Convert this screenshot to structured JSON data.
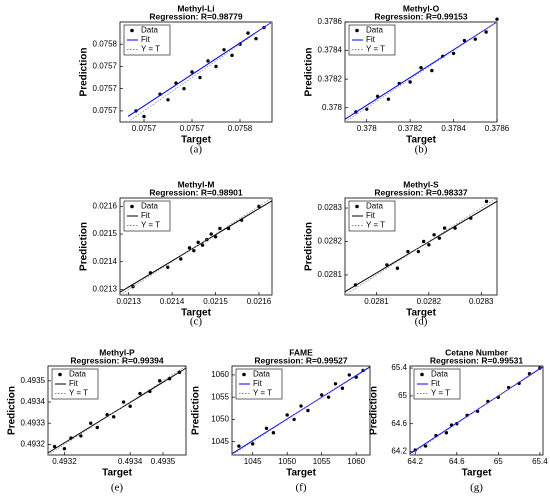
{
  "chart_data": [
    {
      "type": "scatter",
      "title": "Methyl-Li",
      "subtitle": "Regression: R=0.98779",
      "xlabel": "Target",
      "ylabel": "Prediction",
      "caption": "(a)",
      "xlim": [
        0.07563,
        0.07582
      ],
      "ylim": [
        0.07564,
        0.07582
      ],
      "xticks": [
        {
          "value": 0.07566,
          "label": "0.0757"
        },
        {
          "value": 0.07572,
          "label": "0.0757"
        },
        {
          "value": 0.07578,
          "label": "0.0758"
        }
      ],
      "yticks": [
        {
          "value": 0.07566,
          "label": "0.0757"
        },
        {
          "value": 0.0757,
          "label": "0.0757"
        },
        {
          "value": 0.07574,
          "label": "0.0757"
        },
        {
          "value": 0.07578,
          "label": "0.0758"
        }
      ],
      "series": [
        {
          "name": "Data",
          "color": "#000000",
          "style": "marker",
          "x": [
            0.07565,
            0.07566,
            0.07568,
            0.07569,
            0.0757,
            0.07571,
            0.07572,
            0.07573,
            0.07574,
            0.07575,
            0.07576,
            0.07577,
            0.07578,
            0.07579,
            0.0758,
            0.07581
          ],
          "values": [
            0.07566,
            0.07565,
            0.07569,
            0.07568,
            0.07571,
            0.0757,
            0.07573,
            0.07572,
            0.07575,
            0.07574,
            0.07577,
            0.07576,
            0.07578,
            0.0758,
            0.07579,
            0.07581
          ]
        },
        {
          "name": "Fit",
          "color": "#0000ff",
          "style": "solid",
          "x": [
            0.07564,
            0.07582
          ],
          "values": [
            0.07565,
            0.07582
          ]
        },
        {
          "name": "Y = T",
          "color": "#888888",
          "style": "dotted",
          "x": [
            0.07564,
            0.07582
          ],
          "values": [
            0.07564,
            0.07582
          ]
        }
      ]
    },
    {
      "type": "scatter",
      "title": "Methyl-O",
      "subtitle": "Regression: R=0.99153",
      "xlabel": "Target",
      "ylabel": "Prediction",
      "caption": "(b)",
      "xlim": [
        0.3779,
        0.3786
      ],
      "ylim": [
        0.3779,
        0.3786
      ],
      "xticks": [
        0.378,
        0.3782,
        0.3784,
        0.3786
      ],
      "yticks": [
        0.378,
        0.3782,
        0.3784,
        0.3786
      ],
      "series": [
        {
          "name": "Data",
          "color": "#000000",
          "style": "marker",
          "x": [
            0.37795,
            0.378,
            0.37805,
            0.3781,
            0.37815,
            0.3782,
            0.37825,
            0.3783,
            0.37835,
            0.3784,
            0.37845,
            0.3785,
            0.37855,
            0.3786
          ],
          "values": [
            0.37797,
            0.37799,
            0.37808,
            0.37806,
            0.37817,
            0.37818,
            0.37828,
            0.37826,
            0.37836,
            0.37838,
            0.37847,
            0.37848,
            0.37853,
            0.37862
          ]
        },
        {
          "name": "Fit",
          "color": "#0000ff",
          "style": "solid",
          "x": [
            0.3779,
            0.3786
          ],
          "values": [
            0.37792,
            0.3786
          ]
        },
        {
          "name": "Y = T",
          "color": "#888888",
          "style": "dotted",
          "x": [
            0.3779,
            0.3786
          ],
          "values": [
            0.3779,
            0.3786
          ]
        }
      ]
    },
    {
      "type": "scatter",
      "title": "Methyl-M",
      "subtitle": "Regression: R=0.98901",
      "xlabel": "Target",
      "ylabel": "Prediction",
      "caption": "(c)",
      "xlim": [
        0.02128,
        0.02163
      ],
      "ylim": [
        0.02128,
        0.02163
      ],
      "xticks": [
        0.0213,
        0.0214,
        0.0215,
        0.0216
      ],
      "yticks": [
        0.0213,
        0.0214,
        0.0215,
        0.0216
      ],
      "series": [
        {
          "name": "Data",
          "color": "#000000",
          "style": "marker",
          "x": [
            0.02131,
            0.02135,
            0.02139,
            0.02142,
            0.02144,
            0.02145,
            0.02146,
            0.02147,
            0.02148,
            0.02149,
            0.0215,
            0.02151,
            0.02153,
            0.02156,
            0.0216
          ],
          "values": [
            0.02131,
            0.02136,
            0.02138,
            0.02141,
            0.02145,
            0.02144,
            0.02147,
            0.02146,
            0.02148,
            0.0215,
            0.02149,
            0.02152,
            0.02152,
            0.02155,
            0.0216
          ]
        },
        {
          "name": "Fit",
          "color": "#000000",
          "style": "solid",
          "x": [
            0.02128,
            0.02163
          ],
          "values": [
            0.02129,
            0.02162
          ]
        },
        {
          "name": "Y = T",
          "color": "#888888",
          "style": "dotted",
          "x": [
            0.02128,
            0.02163
          ],
          "values": [
            0.02128,
            0.02163
          ]
        }
      ]
    },
    {
      "type": "scatter",
      "title": "Methyl-S",
      "subtitle": "Regression: R=0.98337",
      "xlabel": "Target",
      "ylabel": "Prediction",
      "caption": "(d)",
      "xlim": [
        0.02804,
        0.02833
      ],
      "ylim": [
        0.02804,
        0.02833
      ],
      "xticks": [
        0.0281,
        0.0282,
        0.0283
      ],
      "yticks": [
        0.0281,
        0.0282,
        0.0283
      ],
      "series": [
        {
          "name": "Data",
          "color": "#000000",
          "style": "marker",
          "x": [
            0.02806,
            0.02812,
            0.02814,
            0.02816,
            0.02818,
            0.02819,
            0.0282,
            0.02821,
            0.02822,
            0.02823,
            0.02825,
            0.02828,
            0.02831
          ],
          "values": [
            0.02807,
            0.02813,
            0.02812,
            0.02817,
            0.02817,
            0.0282,
            0.02819,
            0.02822,
            0.02821,
            0.02824,
            0.02824,
            0.02827,
            0.02832
          ]
        },
        {
          "name": "Fit",
          "color": "#000000",
          "style": "solid",
          "x": [
            0.02804,
            0.02833
          ],
          "values": [
            0.02805,
            0.02832
          ]
        },
        {
          "name": "Y = T",
          "color": "#888888",
          "style": "dotted",
          "x": [
            0.02804,
            0.02833
          ],
          "values": [
            0.02804,
            0.02833
          ]
        }
      ]
    },
    {
      "type": "scatter",
      "title": "Methyl-P",
      "subtitle": "Regression: R=0.99394",
      "xlabel": "Target",
      "ylabel": "Prediction",
      "caption": "(e)",
      "xlim": [
        0.49315,
        0.49357
      ],
      "ylim": [
        0.49315,
        0.49357
      ],
      "xticks": [
        0.4932,
        0.4934,
        0.4935
      ],
      "yticks": [
        0.4932,
        0.4933,
        0.4934,
        0.4935
      ],
      "series": [
        {
          "name": "Data",
          "color": "#000000",
          "style": "marker",
          "x": [
            0.49317,
            0.4932,
            0.49322,
            0.49325,
            0.49328,
            0.4933,
            0.49333,
            0.49335,
            0.49338,
            0.4934,
            0.49343,
            0.49346,
            0.49349,
            0.49352,
            0.49355
          ],
          "values": [
            0.49319,
            0.49318,
            0.49323,
            0.49324,
            0.4933,
            0.49328,
            0.49334,
            0.49333,
            0.4934,
            0.49338,
            0.49344,
            0.49345,
            0.4935,
            0.49351,
            0.49354
          ]
        },
        {
          "name": "Fit",
          "color": "#000000",
          "style": "solid",
          "x": [
            0.49315,
            0.49357
          ],
          "values": [
            0.49316,
            0.49356
          ]
        },
        {
          "name": "Y = T",
          "color": "#888888",
          "style": "dotted",
          "x": [
            0.49315,
            0.49357
          ],
          "values": [
            0.49315,
            0.49357
          ]
        }
      ]
    },
    {
      "type": "scatter",
      "title": "FAME",
      "subtitle": "Regression: R=0.99527",
      "xlabel": "Target",
      "ylabel": "Prediction",
      "caption": "(f)",
      "xlim": [
        1042,
        1062
      ],
      "ylim": [
        1042,
        1062
      ],
      "xticks": [
        1045,
        1050,
        1055,
        1060
      ],
      "yticks": [
        1045,
        1050,
        1055,
        1060
      ],
      "series": [
        {
          "name": "Data",
          "color": "#000000",
          "style": "marker",
          "x": [
            1043,
            1045,
            1047,
            1048,
            1050,
            1051,
            1052,
            1053,
            1055,
            1056,
            1057,
            1058,
            1059,
            1060,
            1061
          ],
          "values": [
            1044,
            1044.5,
            1048,
            1047,
            1051,
            1050,
            1053,
            1052,
            1055.5,
            1055,
            1058,
            1057,
            1060,
            1059.5,
            1061
          ]
        },
        {
          "name": "Fit",
          "color": "#0000ff",
          "style": "solid",
          "x": [
            1042,
            1062
          ],
          "values": [
            1042.3,
            1061.8
          ]
        },
        {
          "name": "Y = T",
          "color": "#888888",
          "style": "dotted",
          "x": [
            1042,
            1062
          ],
          "values": [
            1042,
            1062
          ]
        }
      ]
    },
    {
      "type": "scatter",
      "title": "Cetane Number",
      "subtitle": "Regression: R=0.99531",
      "xlabel": "Target",
      "ylabel": "Prediction",
      "caption": "(g)",
      "xlim": [
        64.15,
        65.43
      ],
      "ylim": [
        64.15,
        65.43
      ],
      "xticks": [
        64.2,
        64.6,
        65,
        65.4
      ],
      "yticks": [
        64.2,
        64.6,
        65,
        65.4
      ],
      "series": [
        {
          "name": "Data",
          "color": "#000000",
          "style": "marker",
          "x": [
            64.2,
            64.3,
            64.4,
            64.5,
            64.55,
            64.6,
            64.7,
            64.8,
            64.9,
            65,
            65.1,
            65.2,
            65.3,
            65.4
          ],
          "values": [
            64.22,
            64.28,
            64.43,
            64.47,
            64.58,
            64.6,
            64.72,
            64.78,
            64.92,
            64.98,
            65.12,
            65.18,
            65.32,
            65.4
          ]
        },
        {
          "name": "Fit",
          "color": "#0000ff",
          "style": "solid",
          "x": [
            64.15,
            65.43
          ],
          "values": [
            64.17,
            65.42
          ]
        },
        {
          "name": "Y = T",
          "color": "#888888",
          "style": "dotted",
          "x": [
            64.15,
            65.43
          ],
          "values": [
            64.15,
            65.43
          ]
        }
      ]
    }
  ]
}
